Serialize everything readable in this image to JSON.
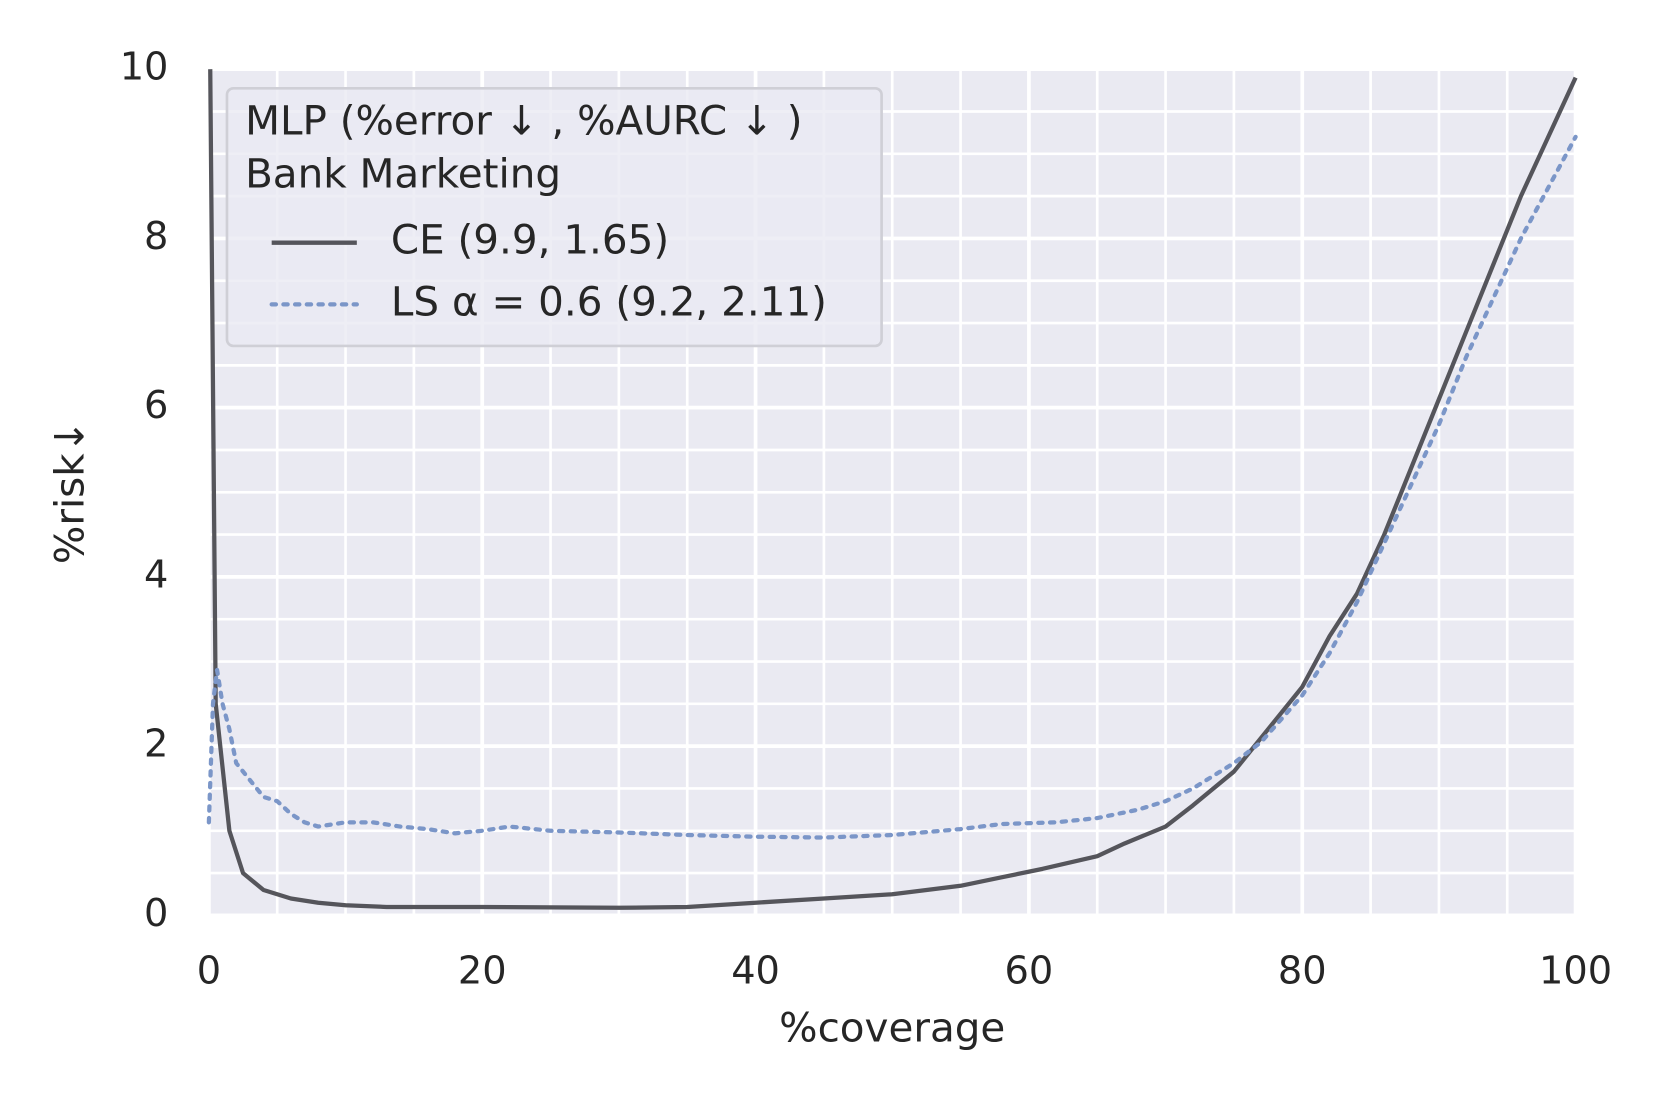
{
  "chart_data": {
    "type": "line",
    "xlabel": "%coverage",
    "ylabel": "%risk↓",
    "xlim": [
      0,
      100
    ],
    "ylim": [
      0,
      10
    ],
    "xticks": [
      0,
      20,
      40,
      60,
      80,
      100
    ],
    "yticks": [
      0,
      2,
      4,
      6,
      8,
      10
    ],
    "xminorticks": [
      5,
      10,
      15,
      25,
      30,
      35,
      45,
      50,
      55,
      65,
      70,
      75,
      85,
      90,
      95
    ],
    "yminorticks": [
      0.5,
      1,
      1.5,
      2.5,
      3,
      3.5,
      4.5,
      5,
      5.5,
      6.5,
      7,
      7.5,
      8.5,
      9,
      9.5
    ],
    "grid": true,
    "background": "#eaeaf2",
    "legend_position": "upper left",
    "legend_title": [
      "MLP (%error ↓ , %AURC ↓ )",
      "Bank Marketing"
    ],
    "series": [
      {
        "name": "CE (9.9, 1.65)",
        "color": "#55555b",
        "linestyle": "solid",
        "x": [
          0.1,
          0.5,
          1.5,
          2.5,
          4,
          6,
          8,
          10,
          13,
          20,
          30,
          35,
          40,
          45,
          50,
          55,
          58,
          61,
          65,
          67,
          70,
          72,
          75,
          77,
          80,
          82,
          84,
          86,
          88,
          90,
          92,
          94,
          96,
          98,
          100
        ],
        "values": [
          10,
          2.5,
          1.0,
          0.5,
          0.3,
          0.2,
          0.15,
          0.12,
          0.1,
          0.1,
          0.09,
          0.1,
          0.15,
          0.2,
          0.25,
          0.35,
          0.45,
          0.55,
          0.7,
          0.85,
          1.05,
          1.3,
          1.7,
          2.1,
          2.7,
          3.3,
          3.8,
          4.5,
          5.3,
          6.1,
          6.9,
          7.7,
          8.5,
          9.2,
          9.9
        ]
      },
      {
        "name": "LS α = 0.6 (9.2, 2.11)",
        "color": "#7b96c8",
        "linestyle": "dotted",
        "x": [
          0,
          0.3,
          0.6,
          1,
          1.5,
          2,
          3,
          4,
          5,
          6,
          7,
          8,
          10,
          12,
          14,
          16,
          18,
          20,
          22,
          25,
          30,
          35,
          40,
          45,
          50,
          55,
          58,
          62,
          65,
          68,
          70,
          72,
          75,
          77,
          80,
          82,
          84,
          86,
          88,
          90,
          92,
          94,
          96,
          98,
          100
        ],
        "values": [
          1.1,
          2.5,
          2.9,
          2.5,
          2.2,
          1.8,
          1.6,
          1.4,
          1.35,
          1.2,
          1.1,
          1.05,
          1.1,
          1.1,
          1.05,
          1.02,
          0.97,
          1.0,
          1.05,
          1.0,
          0.98,
          0.95,
          0.93,
          0.92,
          0.95,
          1.02,
          1.08,
          1.1,
          1.15,
          1.25,
          1.35,
          1.5,
          1.8,
          2.05,
          2.6,
          3.1,
          3.7,
          4.4,
          5.1,
          5.8,
          6.6,
          7.3,
          8.0,
          8.6,
          9.2
        ]
      }
    ]
  }
}
